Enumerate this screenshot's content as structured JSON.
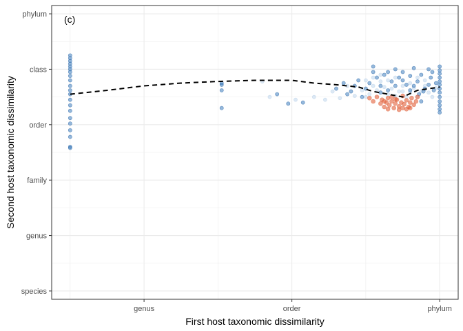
{
  "chart_data": {
    "type": "scatter",
    "panel_label": "(c)",
    "xlabel": "First host taxonomic dissimilarity",
    "ylabel": "Second host taxonomic dissimilarity",
    "x_ticks": [
      {
        "value": 2,
        "label": "genus"
      },
      {
        "value": 4,
        "label": "order"
      },
      {
        "value": 6,
        "label": "phylum"
      }
    ],
    "y_ticks": [
      {
        "value": 1,
        "label": "species"
      },
      {
        "value": 2,
        "label": "genus"
      },
      {
        "value": 3,
        "label": "family"
      },
      {
        "value": 4,
        "label": "order"
      },
      {
        "value": 5,
        "label": "class"
      },
      {
        "value": 6,
        "label": "phylum"
      }
    ],
    "xlim": [
      0.75,
      6.25
    ],
    "ylim": [
      0.85,
      6.15
    ],
    "grid": true,
    "colors": {
      "point_blue": "#3f7fbf",
      "point_light": "#c6dbef",
      "point_red": "#e3603a",
      "trend_line": "#000000",
      "panel_border": "#333333",
      "grid": "#ebebeb"
    },
    "trend_line": {
      "style": "dashed",
      "x": [
        1,
        1.5,
        2,
        2.5,
        3,
        3.5,
        4,
        4.3,
        4.6,
        4.9,
        5.1,
        5.3,
        5.5,
        5.7,
        6
      ],
      "y": [
        4.55,
        4.62,
        4.7,
        4.75,
        4.78,
        4.8,
        4.8,
        4.75,
        4.72,
        4.68,
        4.6,
        4.55,
        4.5,
        4.62,
        4.68
      ]
    },
    "points_blue": [
      [
        1,
        5.25
      ],
      [
        1,
        5.2
      ],
      [
        1,
        5.15
      ],
      [
        1,
        5.1
      ],
      [
        1,
        5.05
      ],
      [
        1,
        5.0
      ],
      [
        1,
        4.95
      ],
      [
        1,
        4.88
      ],
      [
        1,
        4.8
      ],
      [
        1,
        4.7
      ],
      [
        1,
        4.62
      ],
      [
        1,
        4.55
      ],
      [
        1,
        4.45
      ],
      [
        1,
        4.35
      ],
      [
        1,
        4.25
      ],
      [
        1,
        4.12
      ],
      [
        1,
        4.02
      ],
      [
        1,
        3.9
      ],
      [
        1,
        3.78
      ],
      [
        1,
        3.6
      ],
      [
        1,
        3.58
      ],
      [
        3.05,
        4.75
      ],
      [
        3.05,
        4.72
      ],
      [
        3.05,
        4.62
      ],
      [
        3.05,
        4.3
      ],
      [
        3.8,
        4.55
      ],
      [
        3.95,
        4.38
      ],
      [
        4.15,
        4.4
      ],
      [
        4.6,
        4.65
      ],
      [
        4.7,
        4.75
      ],
      [
        4.75,
        4.55
      ],
      [
        4.8,
        4.6
      ],
      [
        4.85,
        4.7
      ],
      [
        4.9,
        4.8
      ],
      [
        4.95,
        4.5
      ],
      [
        5.0,
        4.65
      ],
      [
        5.05,
        4.75
      ],
      [
        5.1,
        5.05
      ],
      [
        5.1,
        4.95
      ],
      [
        5.15,
        4.85
      ],
      [
        5.2,
        4.7
      ],
      [
        5.25,
        4.9
      ],
      [
        5.3,
        4.62
      ],
      [
        5.35,
        4.78
      ],
      [
        5.4,
        5.0
      ],
      [
        5.45,
        4.85
      ],
      [
        5.5,
        4.95
      ],
      [
        5.55,
        4.72
      ],
      [
        5.6,
        4.88
      ],
      [
        5.65,
        5.02
      ],
      [
        5.7,
        4.78
      ],
      [
        5.72,
        4.55
      ],
      [
        5.75,
        4.9
      ],
      [
        5.8,
        4.65
      ],
      [
        5.85,
        5.0
      ],
      [
        5.88,
        4.85
      ],
      [
        5.9,
        4.95
      ],
      [
        5.85,
        4.72
      ],
      [
        5.75,
        4.42
      ],
      [
        5.78,
        4.6
      ],
      [
        6,
        5.05
      ],
      [
        6,
        4.98
      ],
      [
        6,
        4.92
      ],
      [
        6,
        4.85
      ],
      [
        6,
        4.78
      ],
      [
        6,
        4.72
      ],
      [
        6,
        4.65
      ],
      [
        6,
        4.58
      ],
      [
        6,
        4.5
      ],
      [
        6,
        4.42
      ],
      [
        6,
        4.35
      ],
      [
        6,
        4.28
      ],
      [
        6,
        4.22
      ],
      [
        5.2,
        4.58
      ],
      [
        5.4,
        4.7
      ],
      [
        5.6,
        4.62
      ],
      [
        5.3,
        4.95
      ],
      [
        5.5,
        4.8
      ],
      [
        5.65,
        4.7
      ],
      [
        5.95,
        4.75
      ],
      [
        5.92,
        4.62
      ]
    ],
    "points_light": [
      [
        3.6,
        4.78
      ],
      [
        3.7,
        4.5
      ],
      [
        4.05,
        4.45
      ],
      [
        4.3,
        4.5
      ],
      [
        4.45,
        4.45
      ],
      [
        4.55,
        4.6
      ],
      [
        4.65,
        4.48
      ],
      [
        4.75,
        4.7
      ],
      [
        4.85,
        4.52
      ],
      [
        4.95,
        4.62
      ],
      [
        5.0,
        4.5
      ],
      [
        5.05,
        4.55
      ],
      [
        5.1,
        4.7
      ],
      [
        5.15,
        4.62
      ],
      [
        5.2,
        4.78
      ],
      [
        5.25,
        4.68
      ],
      [
        5.3,
        4.55
      ],
      [
        5.35,
        4.65
      ],
      [
        5.4,
        4.52
      ],
      [
        5.45,
        4.6
      ],
      [
        5.5,
        4.7
      ],
      [
        5.55,
        4.5
      ],
      [
        5.6,
        4.58
      ],
      [
        5.65,
        4.66
      ],
      [
        5.7,
        4.5
      ],
      [
        5.75,
        4.6
      ],
      [
        5.8,
        4.7
      ],
      [
        5.85,
        4.58
      ],
      [
        5.9,
        4.5
      ],
      [
        5.95,
        4.66
      ],
      [
        5.0,
        4.8
      ],
      [
        5.1,
        4.85
      ],
      [
        5.2,
        4.9
      ],
      [
        5.3,
        4.8
      ],
      [
        5.4,
        4.85
      ],
      [
        5.5,
        4.6
      ],
      [
        5.6,
        4.75
      ],
      [
        5.7,
        4.85
      ],
      [
        5.8,
        4.8
      ]
    ],
    "points_red": [
      [
        5.05,
        4.48
      ],
      [
        5.1,
        4.42
      ],
      [
        5.15,
        4.5
      ],
      [
        5.2,
        4.38
      ],
      [
        5.22,
        4.45
      ],
      [
        5.25,
        4.32
      ],
      [
        5.28,
        4.4
      ],
      [
        5.3,
        4.48
      ],
      [
        5.32,
        4.35
      ],
      [
        5.35,
        4.42
      ],
      [
        5.38,
        4.3
      ],
      [
        5.4,
        4.38
      ],
      [
        5.42,
        4.45
      ],
      [
        5.45,
        4.33
      ],
      [
        5.48,
        4.4
      ],
      [
        5.5,
        4.3
      ],
      [
        5.52,
        4.37
      ],
      [
        5.55,
        4.44
      ],
      [
        5.58,
        4.32
      ],
      [
        5.6,
        4.4
      ],
      [
        5.62,
        4.48
      ],
      [
        5.65,
        4.36
      ],
      [
        5.68,
        4.42
      ],
      [
        5.7,
        4.5
      ],
      [
        5.3,
        4.28
      ],
      [
        5.45,
        4.27
      ],
      [
        5.55,
        4.28
      ],
      [
        5.35,
        4.5
      ],
      [
        5.5,
        4.52
      ],
      [
        5.6,
        4.3
      ],
      [
        5.25,
        4.42
      ],
      [
        5.4,
        4.46
      ]
    ]
  }
}
